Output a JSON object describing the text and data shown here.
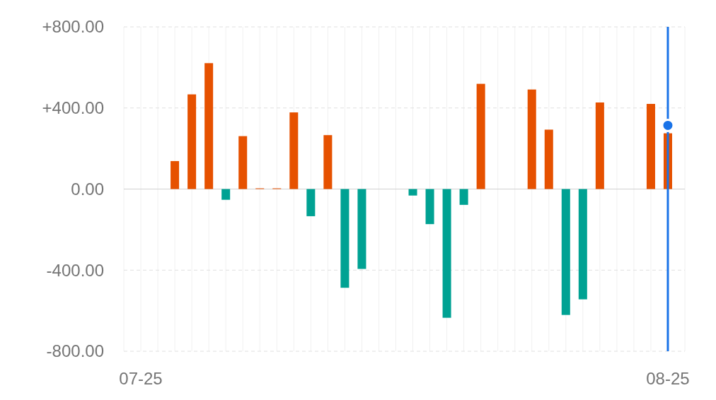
{
  "chart_data": {
    "type": "bar",
    "series": [
      {
        "x": [
          "--07-27",
          "--07-28",
          "--07-29",
          "--07-30",
          "--07-31",
          "--08-01",
          "--08-02",
          "--08-03",
          "--08-04",
          "--08-05",
          "--08-06",
          "--08-07",
          "--08-10",
          "--08-11",
          "--08-12",
          "--08-13",
          "--08-14",
          "--08-17",
          "--08-18",
          "--08-19",
          "--08-20",
          "--08-21",
          "--08-24",
          "--08-25"
        ],
        "values": [
          138,
          467,
          621,
          -53,
          261,
          0,
          0,
          378,
          -134,
          266,
          -487,
          -394,
          -32,
          -173,
          -635,
          -78,
          519,
          491,
          293,
          -621,
          -544,
          427,
          420,
          275
        ],
        "colors": [
          "#e65100",
          "#e65100",
          "#e65100",
          "#00a293",
          "#e65100",
          "#e65100",
          "#e65100",
          "#e65100",
          "#00a293",
          "#e65100",
          "#00a293",
          "#00a293",
          "#00a293",
          "#00a293",
          "#00a293",
          "#00a293",
          "#e65100",
          "#e65100",
          "#e65100",
          "#00a293",
          "#00a293",
          "#e65100",
          "#e65100",
          "#e65100"
        ]
      },
      {
        "type": "scatter",
        "x": [
          "--08-25"
        ],
        "values": [
          314
        ],
        "color": "#1a73e8",
        "marker": "circle"
      }
    ],
    "xlim": [
      "--07-24",
      "--08-26"
    ],
    "xticks": [
      {
        "value": "--07-25",
        "label": "07-25"
      },
      {
        "value": "--08-25",
        "label": "08-25"
      }
    ],
    "ylim": [
      -800,
      800
    ],
    "yticks": [
      {
        "value": -800,
        "label": "-800.00"
      },
      {
        "value": -400,
        "label": "-400.00"
      },
      {
        "value": 0,
        "label": "0.00"
      },
      {
        "value": 400,
        "label": "+400.00"
      },
      {
        "value": 800,
        "label": "+800.00"
      }
    ],
    "grid": true,
    "ref_lines": [
      {
        "axis": "x",
        "value": "--08-25",
        "color": "#1a73e8"
      }
    ]
  }
}
